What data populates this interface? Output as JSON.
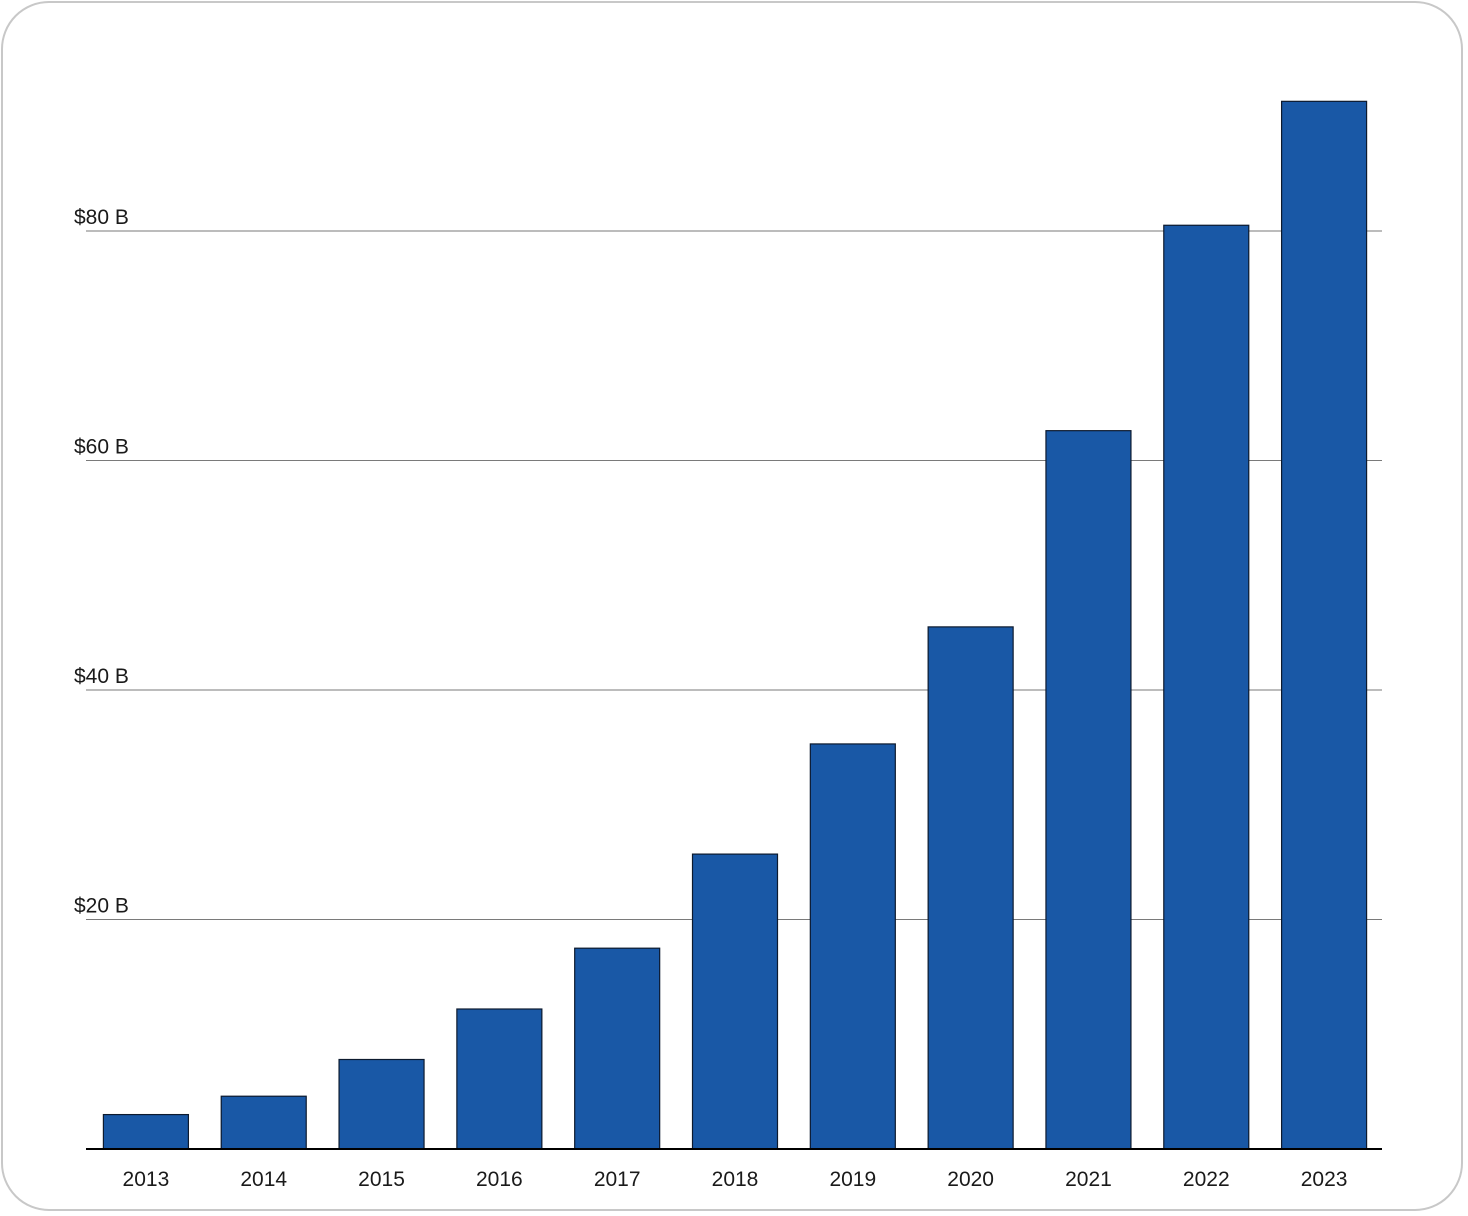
{
  "chart_data": {
    "type": "bar",
    "title": "",
    "xlabel": "",
    "ylabel": "",
    "categories": [
      "2013",
      "2014",
      "2015",
      "2016",
      "2017",
      "2018",
      "2019",
      "2020",
      "2021",
      "2022",
      "2023"
    ],
    "values": [
      3,
      4.6,
      7.8,
      12.2,
      17.5,
      25.7,
      35.3,
      45.5,
      62.6,
      80.5,
      91.3
    ],
    "ylim": [
      0,
      92
    ],
    "y_ticks": [
      20,
      40,
      60,
      80
    ],
    "y_tick_labels": [
      "$20 B",
      "$40 B",
      "$60 B",
      "$80 B"
    ],
    "grid": true,
    "legend": "none",
    "colors": {
      "bar_fill": "#1958a6",
      "bar_stroke": "#0d1a2e",
      "grid": "#7a7a7a",
      "axis": "#000000",
      "frame": "#c8c8c8"
    }
  }
}
